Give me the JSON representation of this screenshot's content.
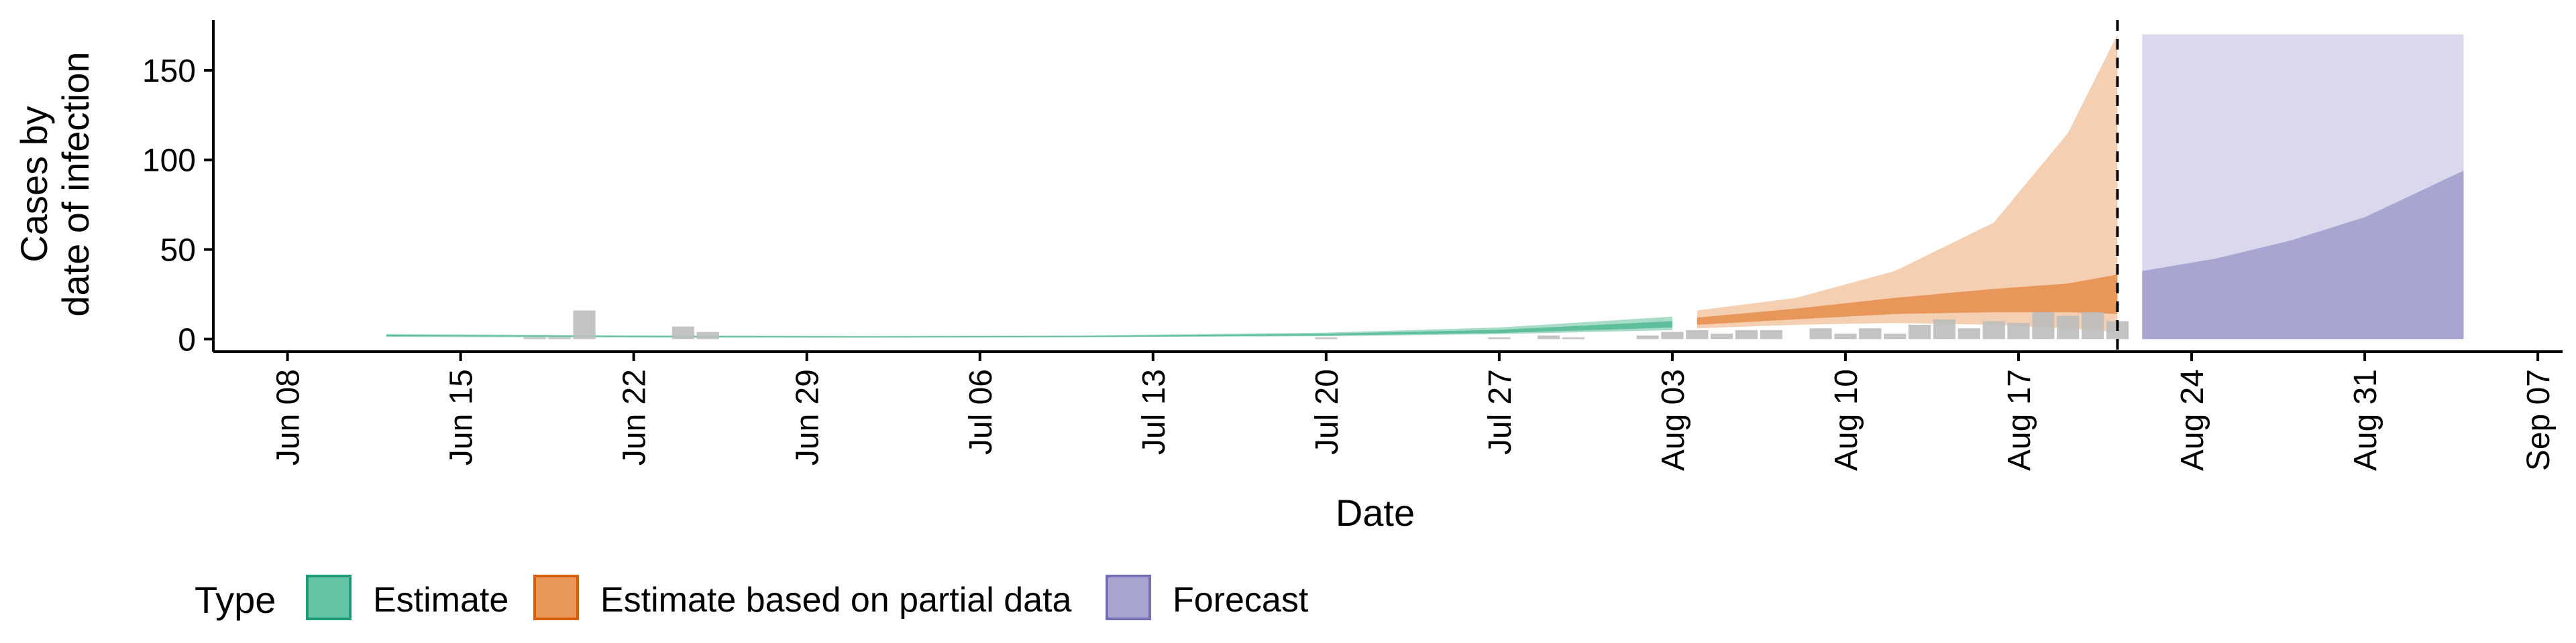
{
  "chart_data": {
    "type": "area",
    "xlabel": "Date",
    "ylabel_lines": [
      "Cases by",
      "date of infection"
    ],
    "xlim": [
      "2020-06-05",
      "2020-09-08"
    ],
    "ylim": [
      -7,
      178
    ],
    "y_ticks": [
      0,
      50,
      100,
      150
    ],
    "x_ticks": [
      {
        "date": "2020-06-08",
        "label": "Jun 08"
      },
      {
        "date": "2020-06-15",
        "label": "Jun 15"
      },
      {
        "date": "2020-06-22",
        "label": "Jun 22"
      },
      {
        "date": "2020-06-29",
        "label": "Jun 29"
      },
      {
        "date": "2020-07-06",
        "label": "Jul 06"
      },
      {
        "date": "2020-07-13",
        "label": "Jul 13"
      },
      {
        "date": "2020-07-20",
        "label": "Jul 20"
      },
      {
        "date": "2020-07-27",
        "label": "Jul 27"
      },
      {
        "date": "2020-08-03",
        "label": "Aug 03"
      },
      {
        "date": "2020-08-10",
        "label": "Aug 10"
      },
      {
        "date": "2020-08-17",
        "label": "Aug 17"
      },
      {
        "date": "2020-08-24",
        "label": "Aug 24"
      },
      {
        "date": "2020-08-31",
        "label": "Aug 31"
      },
      {
        "date": "2020-09-07",
        "label": "Sep 07"
      }
    ],
    "vline_date": "2020-08-21",
    "legend": {
      "title": "Type",
      "position": "bottom",
      "items": [
        {
          "label": "Estimate",
          "color": "#66c2a5",
          "border": "#1b9e77"
        },
        {
          "label": "Estimate based on partial data",
          "color": "#e8965a",
          "border": "#d95f02"
        },
        {
          "label": "Forecast",
          "color": "#a9a5d1",
          "border": "#7570b3"
        }
      ]
    },
    "colors": {
      "estimate_inner": "#5fbf9c",
      "estimate_outer": "#a8dcc6",
      "partial_inner": "#e8965a",
      "partial_outer": "#f4cfb1",
      "forecast_inner": "#a9a5d1",
      "forecast_outer": "#d9d8ec",
      "bars": "#bdbdbd"
    },
    "reported_cases": [
      {
        "date": "2020-06-18",
        "value": 1
      },
      {
        "date": "2020-06-19",
        "value": 1
      },
      {
        "date": "2020-06-20",
        "value": 16
      },
      {
        "date": "2020-06-24",
        "value": 7
      },
      {
        "date": "2020-06-25",
        "value": 4
      },
      {
        "date": "2020-07-20",
        "value": 1
      },
      {
        "date": "2020-07-27",
        "value": 1
      },
      {
        "date": "2020-07-29",
        "value": 2
      },
      {
        "date": "2020-07-30",
        "value": 1
      },
      {
        "date": "2020-08-02",
        "value": 2
      },
      {
        "date": "2020-08-03",
        "value": 4
      },
      {
        "date": "2020-08-04",
        "value": 5
      },
      {
        "date": "2020-08-05",
        "value": 3
      },
      {
        "date": "2020-08-06",
        "value": 5
      },
      {
        "date": "2020-08-07",
        "value": 5
      },
      {
        "date": "2020-08-09",
        "value": 6
      },
      {
        "date": "2020-08-10",
        "value": 3
      },
      {
        "date": "2020-08-11",
        "value": 6
      },
      {
        "date": "2020-08-12",
        "value": 3
      },
      {
        "date": "2020-08-13",
        "value": 8
      },
      {
        "date": "2020-08-14",
        "value": 11
      },
      {
        "date": "2020-08-15",
        "value": 6
      },
      {
        "date": "2020-08-16",
        "value": 10
      },
      {
        "date": "2020-08-17",
        "value": 9
      },
      {
        "date": "2020-08-18",
        "value": 15
      },
      {
        "date": "2020-08-19",
        "value": 13
      },
      {
        "date": "2020-08-20",
        "value": 15
      },
      {
        "date": "2020-08-21",
        "value": 10
      }
    ],
    "series": [
      {
        "name": "Estimate",
        "points": [
          {
            "date": "2020-06-12",
            "inner": [
              1.6,
              2.4
            ],
            "outer": [
              1.2,
              2.8
            ]
          },
          {
            "date": "2020-06-22",
            "inner": [
              1.2,
              1.8
            ],
            "outer": [
              0.9,
              2.1
            ]
          },
          {
            "date": "2020-07-01",
            "inner": [
              1.0,
              1.5
            ],
            "outer": [
              0.8,
              1.7
            ]
          },
          {
            "date": "2020-07-10",
            "inner": [
              1.2,
              1.7
            ],
            "outer": [
              1.0,
              2.0
            ]
          },
          {
            "date": "2020-07-20",
            "inner": [
              2.0,
              3.0
            ],
            "outer": [
              1.6,
              3.6
            ]
          },
          {
            "date": "2020-07-27",
            "inner": [
              3.4,
              5.2
            ],
            "outer": [
              2.8,
              6.5
            ]
          },
          {
            "date": "2020-08-03",
            "inner": [
              6.5,
              10.0
            ],
            "outer": [
              5.0,
              12.5
            ]
          }
        ]
      },
      {
        "name": "Estimate based on partial data",
        "points": [
          {
            "date": "2020-08-04",
            "inner": [
              8,
              12
            ],
            "outer": [
              6,
              16
            ]
          },
          {
            "date": "2020-08-08",
            "inner": [
              11,
              17
            ],
            "outer": [
              8,
              23
            ]
          },
          {
            "date": "2020-08-12",
            "inner": [
              14,
              23
            ],
            "outer": [
              9,
              38
            ]
          },
          {
            "date": "2020-08-16",
            "inner": [
              15,
              28
            ],
            "outer": [
              8,
              65
            ]
          },
          {
            "date": "2020-08-19",
            "inner": [
              15,
              31
            ],
            "outer": [
              6,
              115
            ]
          },
          {
            "date": "2020-08-21",
            "inner": [
              14,
              36
            ],
            "outer": [
              4,
              170
            ]
          }
        ]
      },
      {
        "name": "Forecast",
        "points": [
          {
            "date": "2020-08-22",
            "inner": [
              0,
              38
            ],
            "outer": [
              0,
              170
            ]
          },
          {
            "date": "2020-08-25",
            "inner": [
              0,
              45
            ],
            "outer": [
              0,
              170
            ]
          },
          {
            "date": "2020-08-28",
            "inner": [
              0,
              55
            ],
            "outer": [
              0,
              170
            ]
          },
          {
            "date": "2020-08-31",
            "inner": [
              0,
              68
            ],
            "outer": [
              0,
              170
            ]
          },
          {
            "date": "2020-09-04",
            "inner": [
              0,
              94
            ],
            "outer": [
              0,
              170
            ]
          }
        ]
      }
    ]
  }
}
